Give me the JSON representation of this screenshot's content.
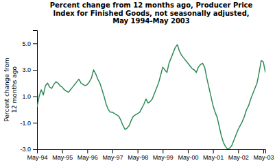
{
  "chart_data": {
    "type": "line",
    "title": "Percent change from 12 months ago, Producer Price\nIndex for Finished Goods, not seasonally adjusted,\nMay 1994-May 2003",
    "ylabel": "Percent change from\n12 months ago",
    "color": "#2e8b57",
    "grid": false,
    "categories": [
      "May-94",
      null,
      null,
      null,
      null,
      null,
      null,
      null,
      null,
      null,
      null,
      null,
      "May-95",
      null,
      null,
      null,
      null,
      null,
      null,
      null,
      null,
      null,
      null,
      null,
      "May-96",
      null,
      null,
      null,
      null,
      null,
      null,
      null,
      null,
      null,
      null,
      null,
      "May-97",
      null,
      null,
      null,
      null,
      null,
      null,
      null,
      null,
      null,
      null,
      null,
      "May-98",
      null,
      null,
      null,
      null,
      null,
      null,
      null,
      null,
      null,
      null,
      null,
      "May-99",
      null,
      null,
      null,
      null,
      null,
      null,
      null,
      null,
      null,
      null,
      null,
      "May-00",
      null,
      null,
      null,
      null,
      null,
      null,
      null,
      null,
      null,
      null,
      null,
      "May-01",
      null,
      null,
      null,
      null,
      null,
      null,
      null,
      null,
      null,
      null,
      null,
      "May-02",
      null,
      null,
      null,
      null,
      null,
      null,
      null,
      null,
      null,
      null,
      null,
      "May-03",
      null
    ],
    "values": [
      0.2,
      1.0,
      1.5,
      1.1,
      1.8,
      2.0,
      1.7,
      1.6,
      1.9,
      2.1,
      2.0,
      1.8,
      1.7,
      1.5,
      1.4,
      1.3,
      1.5,
      1.7,
      1.9,
      2.1,
      2.3,
      2.0,
      1.9,
      1.8,
      1.9,
      2.1,
      2.4,
      3.0,
      2.7,
      2.3,
      2.0,
      1.5,
      1.0,
      0.4,
      0.0,
      -0.2,
      -0.2,
      -0.3,
      -0.4,
      -0.5,
      -0.8,
      -1.2,
      -1.5,
      -1.4,
      -1.2,
      -0.8,
      -0.5,
      -0.4,
      -0.3,
      -0.2,
      0.1,
      0.4,
      0.8,
      0.5,
      0.6,
      0.8,
      1.2,
      1.6,
      2.0,
      2.6,
      3.2,
      3.0,
      2.8,
      3.5,
      3.9,
      4.3,
      4.7,
      4.9,
      4.4,
      4.1,
      3.9,
      3.7,
      3.5,
      3.3,
      3.1,
      3.0,
      2.8,
      3.2,
      3.4,
      3.5,
      3.2,
      2.4,
      1.7,
      1.0,
      0.3,
      -0.2,
      -0.6,
      -1.3,
      -2.0,
      -2.5,
      -2.8,
      -3.0,
      -2.9,
      -2.7,
      -2.3,
      -1.9,
      -1.5,
      -1.2,
      -0.9,
      -0.5,
      0.0,
      0.3,
      0.8,
      1.2,
      1.6,
      2.0,
      2.8,
      3.7,
      3.6,
      2.8
    ],
    "ylim": [
      -3.0,
      6.0
    ],
    "yticks": [
      {
        "value": -3.0,
        "label": "-3.0"
      },
      {
        "value": -1.0,
        "label": "-1.0"
      },
      {
        "value": 1.0,
        "label": "1.0"
      },
      {
        "value": 3.0,
        "label": "3.0"
      },
      {
        "value": 5.0,
        "label": "5.0"
      }
    ]
  }
}
